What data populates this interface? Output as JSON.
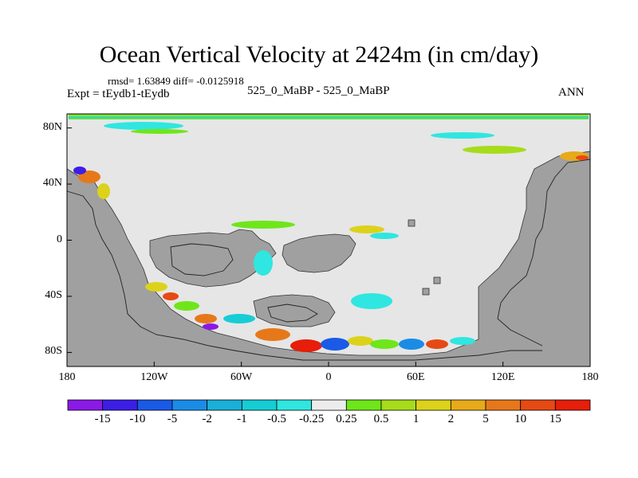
{
  "title": "Ocean Vertical Velocity at 2424m (in cm/day)",
  "stats": "rmsd= 1.63849  diff= -0.0125918",
  "experiment": "Expt = tEydb1-tEydb",
  "center_label": "525_0_MaBP - 525_0_MaBP",
  "season": "ANN",
  "map": {
    "lon_range": [
      -180,
      180
    ],
    "lat_range": [
      -90,
      90
    ],
    "ocean_background": "#e6e6e6",
    "land_color": "#a0a0a0",
    "y_ticks": [
      {
        "lat": 80,
        "label": "80N"
      },
      {
        "lat": 40,
        "label": "40N"
      },
      {
        "lat": 0,
        "label": "0"
      },
      {
        "lat": -40,
        "label": "40S"
      },
      {
        "lat": -80,
        "label": "80S"
      }
    ],
    "x_ticks": [
      {
        "lon": -180,
        "label": "180"
      },
      {
        "lon": -120,
        "label": "120W"
      },
      {
        "lon": -60,
        "label": "60W"
      },
      {
        "lon": 0,
        "label": "0"
      },
      {
        "lon": 60,
        "label": "60E"
      },
      {
        "lon": 120,
        "label": "120E"
      },
      {
        "lon": 180,
        "label": "180"
      }
    ]
  },
  "colorbar": {
    "colors": [
      "#8a1ae6",
      "#3c1ee6",
      "#1a5ae6",
      "#1a8ce6",
      "#1aafd8",
      "#16cdd6",
      "#30e6e0",
      "#ececec",
      "#6ee61a",
      "#a6dc1a",
      "#dcd21a",
      "#e6aa1a",
      "#e6781a",
      "#e64a14",
      "#e61e0a"
    ],
    "labels": [
      "-15",
      "-10",
      "-5",
      "-2",
      "-1",
      "-0.5",
      "-0.25",
      "0.25",
      "0.5",
      "1",
      "2",
      "5",
      "10",
      "15"
    ]
  }
}
